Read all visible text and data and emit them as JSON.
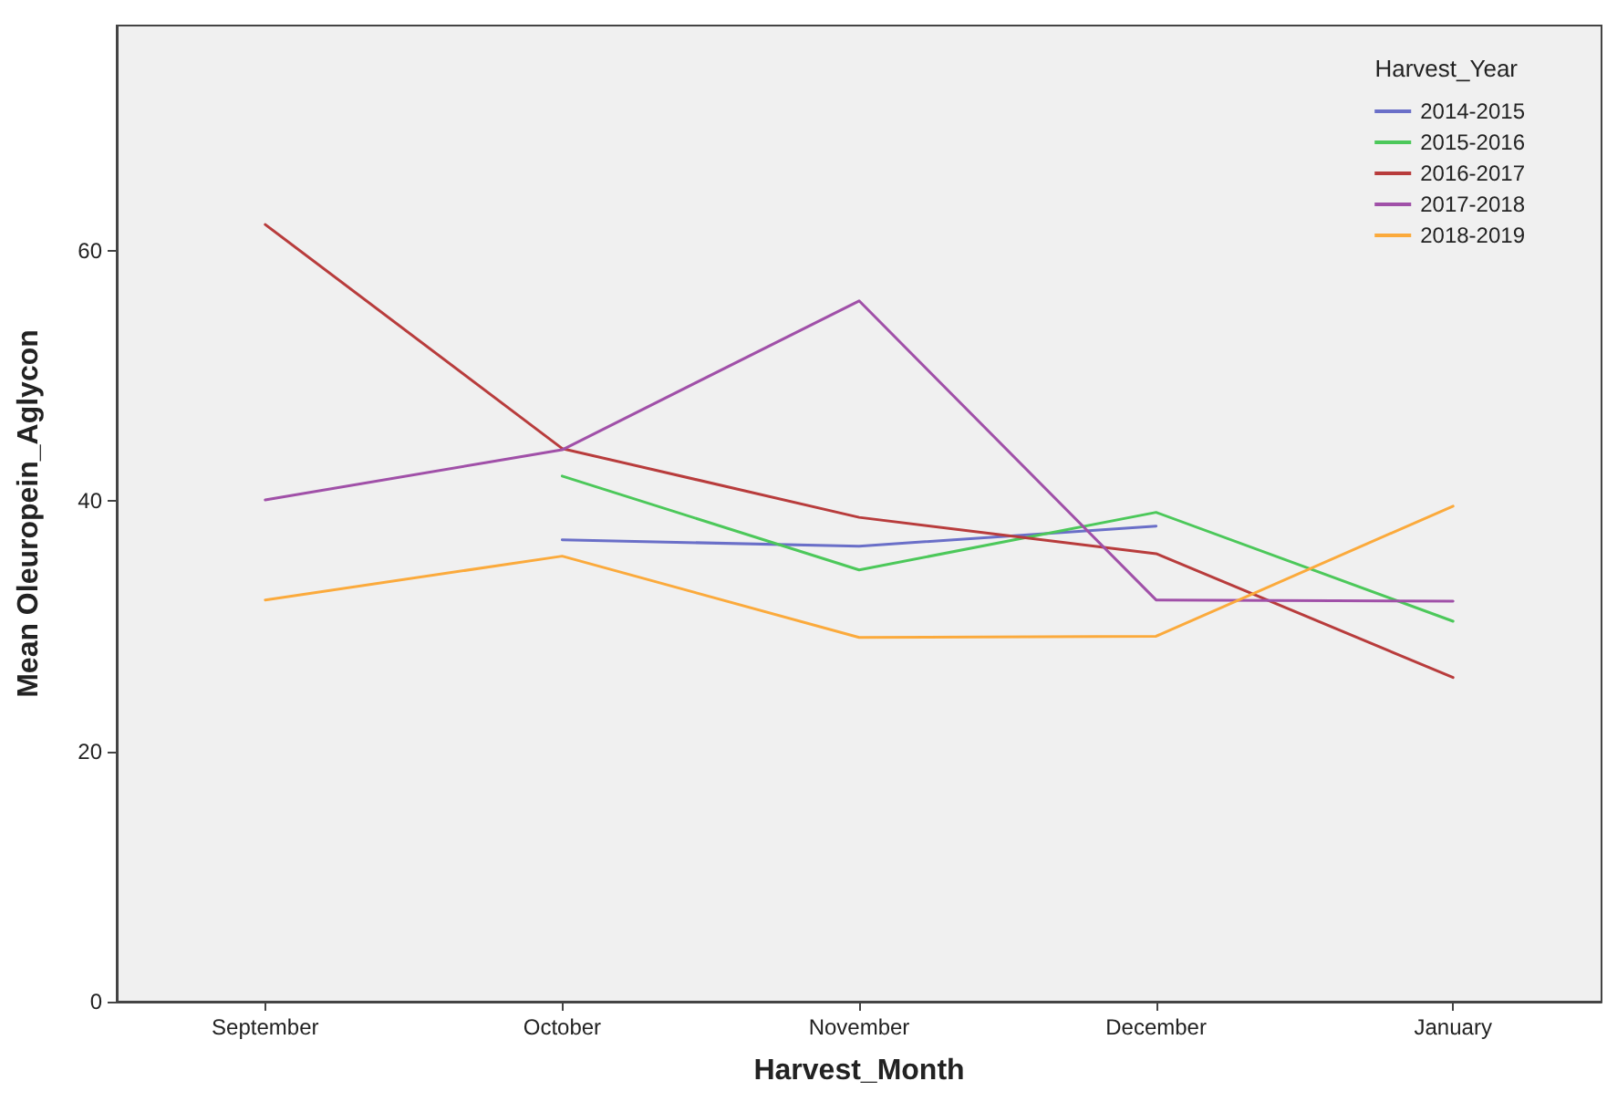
{
  "chart_data": {
    "type": "line",
    "xlabel": "Harvest_Month",
    "ylabel": "Mean Oleuropein_Aglycon",
    "legend_title": "Harvest_Year",
    "categories": [
      "September",
      "October",
      "November",
      "December",
      "January"
    ],
    "series": [
      {
        "name": "2014-2015",
        "color": "#6a6fc8",
        "values": [
          null,
          36.9,
          36.4,
          38.0,
          null
        ]
      },
      {
        "name": "2015-2016",
        "color": "#4cc85a",
        "values": [
          null,
          42.0,
          34.5,
          39.1,
          30.4
        ]
      },
      {
        "name": "2016-2017",
        "color": "#b83c3c",
        "values": [
          62.1,
          44.2,
          38.7,
          35.8,
          25.9
        ]
      },
      {
        "name": "2017-2018",
        "color": "#a050a8",
        "values": [
          40.1,
          44.1,
          56.0,
          32.1,
          32.0
        ]
      },
      {
        "name": "2018-2019",
        "color": "#fbaa3c",
        "values": [
          32.1,
          35.6,
          29.1,
          29.2,
          39.6
        ]
      }
    ],
    "ylim": [
      0,
      78
    ],
    "yticks": [
      0,
      20,
      40,
      60
    ],
    "grid": false,
    "legend": "top right",
    "marker": "none",
    "line_style": "solid"
  }
}
